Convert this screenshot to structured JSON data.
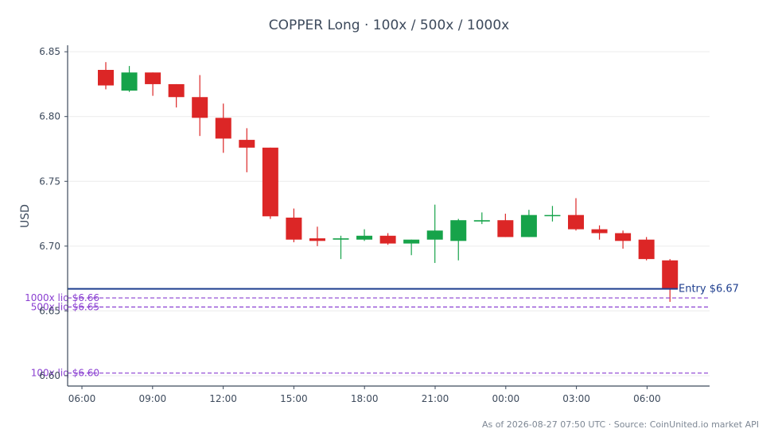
{
  "chart_data": {
    "type": "candlestick",
    "title": "COPPER Long · 100x / 500x / 1000x",
    "ylabel": "USD",
    "ylim": [
      6.592,
      6.855
    ],
    "yticks": [
      "6.60",
      "6.65",
      "6.70",
      "6.75",
      "6.80",
      "6.85"
    ],
    "xtick_labels": [
      "06:00",
      "09:00",
      "12:00",
      "15:00",
      "18:00",
      "21:00",
      "00:00",
      "03:00",
      "06:00"
    ],
    "grid": "horizontal",
    "colors": {
      "up": "#16a34a",
      "down": "#dc2626",
      "entry": "#1f3f8f",
      "liquidation": "#8a3fd1"
    },
    "candles": [
      {
        "o": 6.836,
        "h": 6.842,
        "l": 6.821,
        "c": 6.824
      },
      {
        "o": 6.82,
        "h": 6.839,
        "l": 6.819,
        "c": 6.834
      },
      {
        "o": 6.834,
        "h": 6.834,
        "l": 6.816,
        "c": 6.825
      },
      {
        "o": 6.825,
        "h": 6.825,
        "l": 6.807,
        "c": 6.815
      },
      {
        "o": 6.815,
        "h": 6.832,
        "l": 6.785,
        "c": 6.799
      },
      {
        "o": 6.799,
        "h": 6.81,
        "l": 6.772,
        "c": 6.783
      },
      {
        "o": 6.782,
        "h": 6.791,
        "l": 6.757,
        "c": 6.776
      },
      {
        "o": 6.776,
        "h": 6.776,
        "l": 6.721,
        "c": 6.723
      },
      {
        "o": 6.722,
        "h": 6.729,
        "l": 6.703,
        "c": 6.705
      },
      {
        "o": 6.706,
        "h": 6.715,
        "l": 6.7,
        "c": 6.704
      },
      {
        "o": 6.705,
        "h": 6.708,
        "l": 6.69,
        "c": 6.706
      },
      {
        "o": 6.705,
        "h": 6.713,
        "l": 6.704,
        "c": 6.708
      },
      {
        "o": 6.708,
        "h": 6.71,
        "l": 6.701,
        "c": 6.702
      },
      {
        "o": 6.702,
        "h": 6.705,
        "l": 6.693,
        "c": 6.705
      },
      {
        "o": 6.705,
        "h": 6.732,
        "l": 6.687,
        "c": 6.712
      },
      {
        "o": 6.704,
        "h": 6.721,
        "l": 6.689,
        "c": 6.72
      },
      {
        "o": 6.719,
        "h": 6.726,
        "l": 6.717,
        "c": 6.72
      },
      {
        "o": 6.72,
        "h": 6.725,
        "l": 6.707,
        "c": 6.707
      },
      {
        "o": 6.707,
        "h": 6.728,
        "l": 6.707,
        "c": 6.724
      },
      {
        "o": 6.724,
        "h": 6.731,
        "l": 6.719,
        "c": 6.724
      },
      {
        "o": 6.724,
        "h": 6.737,
        "l": 6.712,
        "c": 6.713
      },
      {
        "o": 6.713,
        "h": 6.716,
        "l": 6.705,
        "c": 6.71
      },
      {
        "o": 6.71,
        "h": 6.712,
        "l": 6.698,
        "c": 6.704
      },
      {
        "o": 6.705,
        "h": 6.707,
        "l": 6.689,
        "c": 6.69
      },
      {
        "o": 6.689,
        "h": 6.69,
        "l": 6.657,
        "c": 6.667
      }
    ],
    "entry": {
      "label": "Entry $6.67",
      "value": 6.667
    },
    "liquidations": [
      {
        "label": "1000x liq $6.66",
        "value": 6.66
      },
      {
        "label": "500x liq $6.65",
        "value": 6.653
      },
      {
        "label": "100x liq $6.60",
        "value": 6.602
      }
    ]
  },
  "footer": "As of 2026-08-27 07:50 UTC · Source: CoinUnited.io market API"
}
